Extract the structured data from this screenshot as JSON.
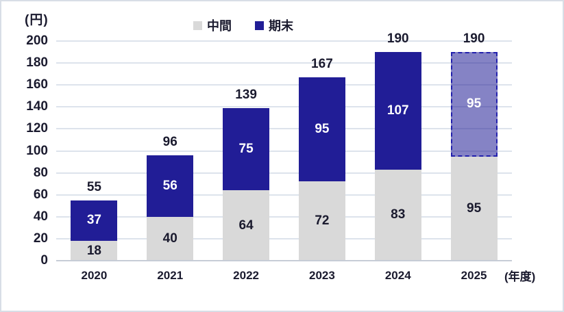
{
  "unit_label": "(円)",
  "x_axis_unit": "(年度)",
  "legend": {
    "items": [
      {
        "label": "中間",
        "color": "#d9d9d9"
      },
      {
        "label": "期末",
        "color": "#211d96"
      }
    ]
  },
  "colors": {
    "interim_bar": "#d9d9d9",
    "final_bar": "#211d96",
    "forecast_fill": "rgba(33,29,150,0.55)",
    "forecast_border": "#2220ad",
    "gridline": "#dde3ec",
    "axis_line": "#c6ccd6",
    "text": "#1a1a2e",
    "final_value_text": "#ffffff",
    "frame_border": "#d8dee6"
  },
  "chart_data": {
    "type": "bar",
    "stacked": true,
    "title": "",
    "xlabel": "(年度)",
    "ylabel": "(円)",
    "categories": [
      "2020",
      "2021",
      "2022",
      "2023",
      "2024",
      "2025"
    ],
    "series": [
      {
        "name": "中間",
        "values": [
          18,
          40,
          64,
          72,
          83,
          95
        ],
        "color": "#d9d9d9",
        "label_color": "#1a1a2e"
      },
      {
        "name": "期末",
        "values": [
          37,
          56,
          75,
          95,
          107,
          95
        ],
        "color": "#211d96",
        "label_color": "#ffffff"
      }
    ],
    "totals": [
      55,
      96,
      139,
      167,
      190,
      190
    ],
    "forecast_categories": [
      "2025"
    ],
    "ylim": [
      0,
      200
    ],
    "ytick_step": 20,
    "grid": true,
    "legend_position": "top-center"
  }
}
